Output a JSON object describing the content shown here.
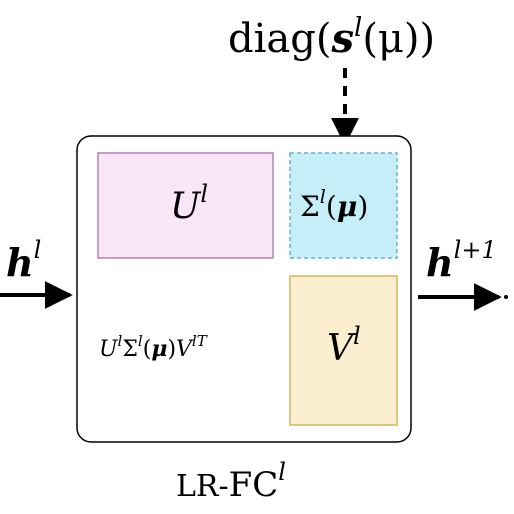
{
  "top_label": {
    "prefix": "diag(",
    "s": "s",
    "sup": "l",
    "arg": "(μ))"
  },
  "input_label": {
    "base": "h",
    "sup": "l"
  },
  "output_label": {
    "base": "h",
    "sup": "l+1"
  },
  "u_box": {
    "base": "U",
    "sup": "l"
  },
  "sigma_box": {
    "base": "Σ",
    "sup": "l",
    "arg_open": "(",
    "mu": "μ",
    "arg_close": ")"
  },
  "v_box": {
    "base": "V",
    "sup": "l"
  },
  "product": {
    "u": "U",
    "u_sup": "l",
    "sigma": "Σ",
    "sigma_sup": "l",
    "open": "(",
    "mu": "μ",
    "close": ")",
    "v": "V",
    "v_sup": "lT"
  },
  "module_label": {
    "prefix": "LR-",
    "name": "FC",
    "sup": "l"
  },
  "colors": {
    "u_fill": "#f8e6f7",
    "u_stroke": "#b283b5",
    "sigma_fill": "#c6eef8",
    "sigma_stroke": "#5fb3d4",
    "v_fill": "#fcefcf",
    "v_stroke": "#d9b35f",
    "line": "#000000"
  }
}
